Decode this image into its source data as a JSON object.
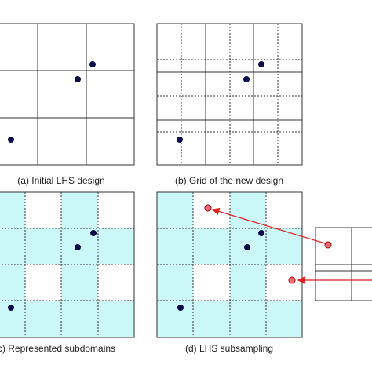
{
  "panels": [
    {
      "caption": "(a) Initial LHS design"
    },
    {
      "caption": "(b) Grid of the new design"
    },
    {
      "caption": "(c) Represented subdomains"
    },
    {
      "caption": "(d) LHS subsampling"
    }
  ]
}
